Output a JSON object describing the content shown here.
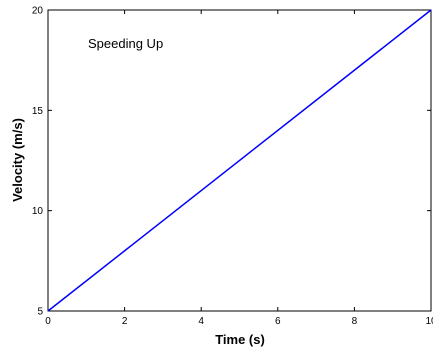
{
  "chart_data": {
    "type": "line",
    "title": "",
    "annotation": "Speeding Up",
    "xlabel": "Time (s)",
    "ylabel": "Velocity (m/s)",
    "xlim": [
      0,
      10
    ],
    "ylim": [
      5,
      20
    ],
    "xticks": [
      0,
      2,
      4,
      6,
      8,
      10
    ],
    "yticks": [
      5,
      10,
      15,
      20
    ],
    "grid": false,
    "legend": "none",
    "series": [
      {
        "color": "#0000ff",
        "x": [
          0,
          10
        ],
        "y": [
          5,
          20
        ]
      }
    ],
    "colors": {
      "line": "#0000ff",
      "axes": "#000000",
      "background": "#ffffff"
    }
  }
}
